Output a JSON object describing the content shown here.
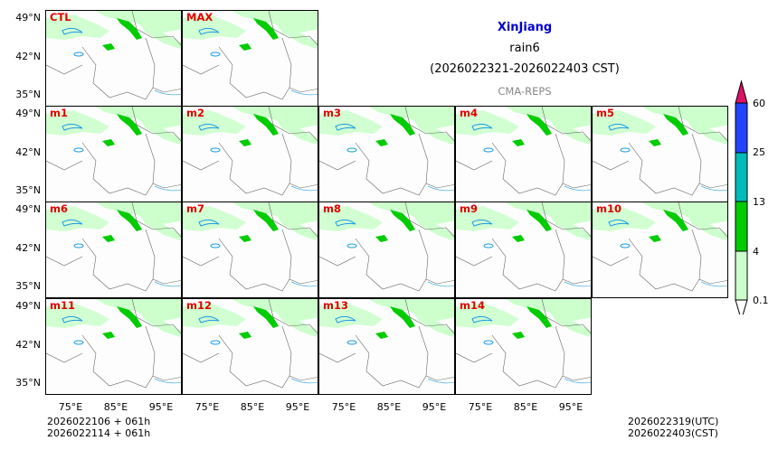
{
  "header": {
    "region": "XinJiang",
    "variable": "rain6",
    "period": "(2026022321-2026022403 CST)",
    "model": "CMA-REPS"
  },
  "panels": [
    "CTL",
    "MAX",
    "m1",
    "m2",
    "m3",
    "m4",
    "m5",
    "m6",
    "m7",
    "m8",
    "m9",
    "m10",
    "m11",
    "m12",
    "m13",
    "m14"
  ],
  "axes": {
    "lat_labels": [
      "49°N",
      "42°N",
      "35°N"
    ],
    "lon_labels": [
      "75°E",
      "85°E",
      "95°E"
    ]
  },
  "colorbar": {
    "levels": [
      "0.1",
      "4",
      "13",
      "25",
      "60"
    ],
    "colors": [
      "#ccffcc",
      "#00cc00",
      "#00bbbb",
      "#2244ff",
      "#dd1166"
    ]
  },
  "footer": {
    "init_line1": "2026022106  +  061h",
    "init_line2": "2026022114  +  061h",
    "valid_utc": "2026022319(UTC)",
    "valid_cst": "2026022403(CST)"
  },
  "colors": {
    "label_red": "#e00000",
    "title_blue": "#0000cc",
    "model_gray": "#888888"
  }
}
